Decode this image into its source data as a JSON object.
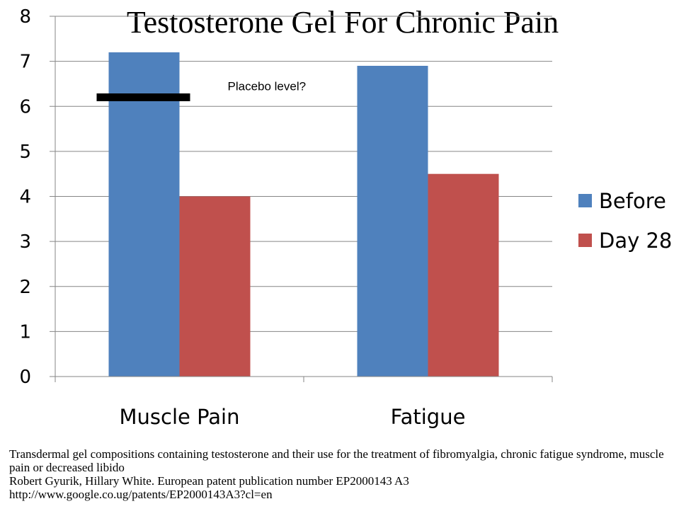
{
  "chart_data": {
    "type": "bar",
    "title": "Testosterone Gel For Chronic Pain",
    "categories": [
      "Muscle Pain",
      "Fatigue"
    ],
    "series": [
      {
        "name": "Before",
        "color": "#4F81BD",
        "values": [
          7.2,
          6.9
        ]
      },
      {
        "name": "Day 28",
        "color": "#C0504D",
        "values": [
          4.0,
          4.5
        ]
      }
    ],
    "ylim": [
      0,
      8
    ],
    "yticks": [
      0,
      1,
      2,
      3,
      4,
      5,
      6,
      7,
      8
    ],
    "grid": true,
    "legend_position": "right",
    "annotation": {
      "text": "Placebo level?",
      "value": 6.2,
      "category": "Muscle Pain"
    }
  },
  "caption": {
    "line1": "Transdermal gel compositions containing testosterone and their use for the treatment of fibromyalgia, chronic fatigue syndrome, muscle pain or decreased libido",
    "line2": "Robert Gyurik, Hillary White. European patent publication number EP2000143 A3",
    "line3": "http://www.google.co.ug/patents/EP2000143A3?cl=en"
  }
}
